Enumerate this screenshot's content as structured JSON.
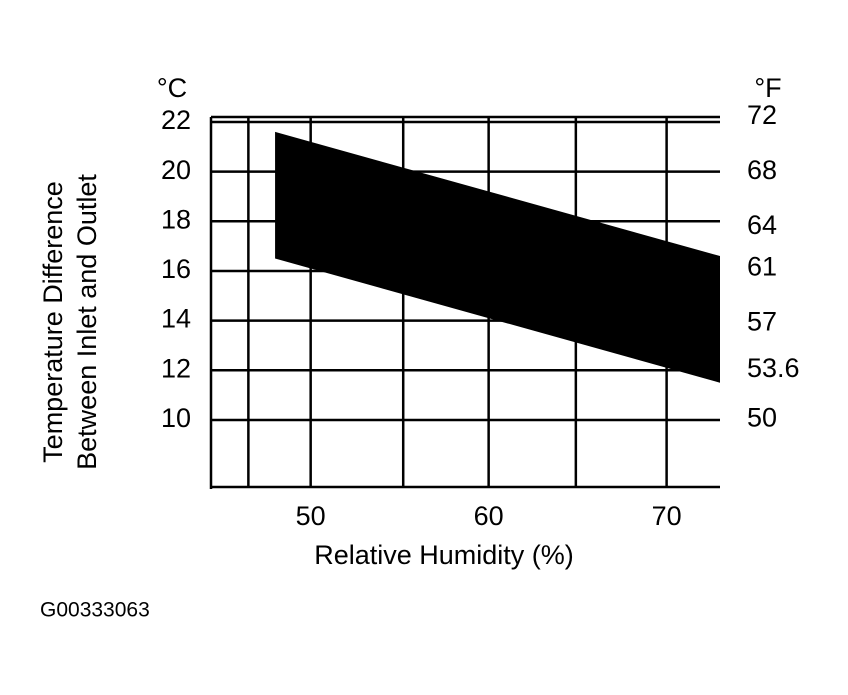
{
  "chart_data": {
    "type": "band",
    "y_unit": "°C",
    "y2_unit": "°F",
    "ylabel": [
      "Temperature Difference",
      "Between Inlet and Outlet"
    ],
    "xlabel": "Relative Humidity (%)",
    "x": [
      48,
      73
    ],
    "upper": [
      21.6,
      16.6
    ],
    "lower": [
      16.5,
      11.5
    ],
    "color": "#000000",
    "xlim": [
      44.4,
      73
    ],
    "xticks": [
      50,
      60,
      70
    ],
    "xgrid": [
      46.5,
      50,
      55.2,
      60,
      64.9,
      70
    ],
    "ylim": [
      7.3,
      22.2
    ],
    "yticks": [
      10,
      12,
      14,
      16,
      18,
      20,
      22
    ],
    "y2lim": [
      45.1,
      72
    ],
    "y2ticks": [
      50,
      53.6,
      57,
      61,
      64,
      68,
      72
    ],
    "grid": true
  },
  "caption": "G00333063"
}
